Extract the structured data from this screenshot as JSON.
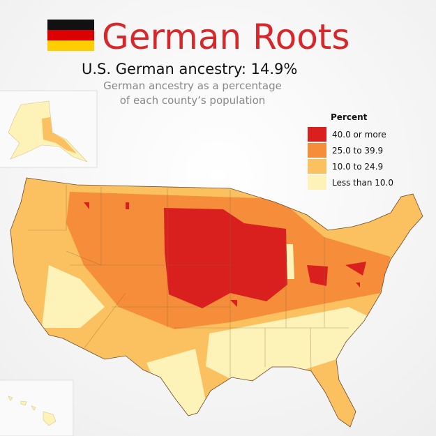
{
  "header": {
    "title": "German Roots",
    "headline": "U.S. German ancestry: 14.9%",
    "subtitle_lines": [
      "German ancestry as a percentage",
      "of each county’s population"
    ]
  },
  "legend": {
    "title": "Percent",
    "items": [
      {
        "label": "40.0 or more",
        "color": "#d9201f"
      },
      {
        "label": "25.0 to 39.9",
        "color": "#f58d3b"
      },
      {
        "label": "10.0 to 24.9",
        "color": "#fbc160"
      },
      {
        "label": "Less than 10.0",
        "color": "#fdf2b7"
      }
    ]
  }
}
